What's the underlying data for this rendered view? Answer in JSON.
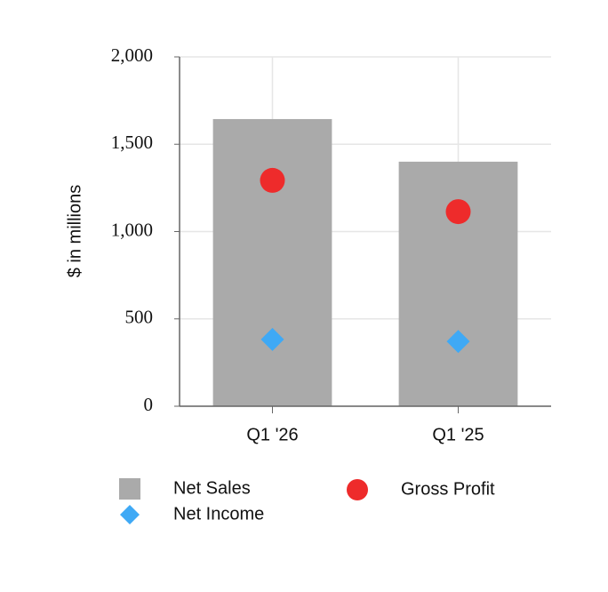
{
  "chart_data": {
    "type": "bar",
    "y_label": "$ in millions",
    "categories": [
      "Q1 '26",
      "Q1 '25"
    ],
    "series": [
      {
        "name": "Net Sales",
        "type": "bar",
        "color": "#aaaaaa",
        "values": [
          1644,
          1400
        ]
      },
      {
        "name": "Gross Profit",
        "type": "scatter",
        "marker": "circle",
        "color": "#ee2b2b",
        "values": [
          1293,
          1114
        ]
      },
      {
        "name": "Net Income",
        "type": "scatter",
        "marker": "diamond",
        "color": "#3fa9f5",
        "values": [
          382,
          371
        ]
      }
    ],
    "ylim": [
      0,
      2000
    ],
    "yticks": [
      0,
      500,
      {
        "value": 1000,
        "label": "1,000"
      },
      {
        "value": 1500,
        "label": "1,500"
      },
      {
        "value": 2000,
        "label": "2,000"
      }
    ],
    "grid": true
  }
}
